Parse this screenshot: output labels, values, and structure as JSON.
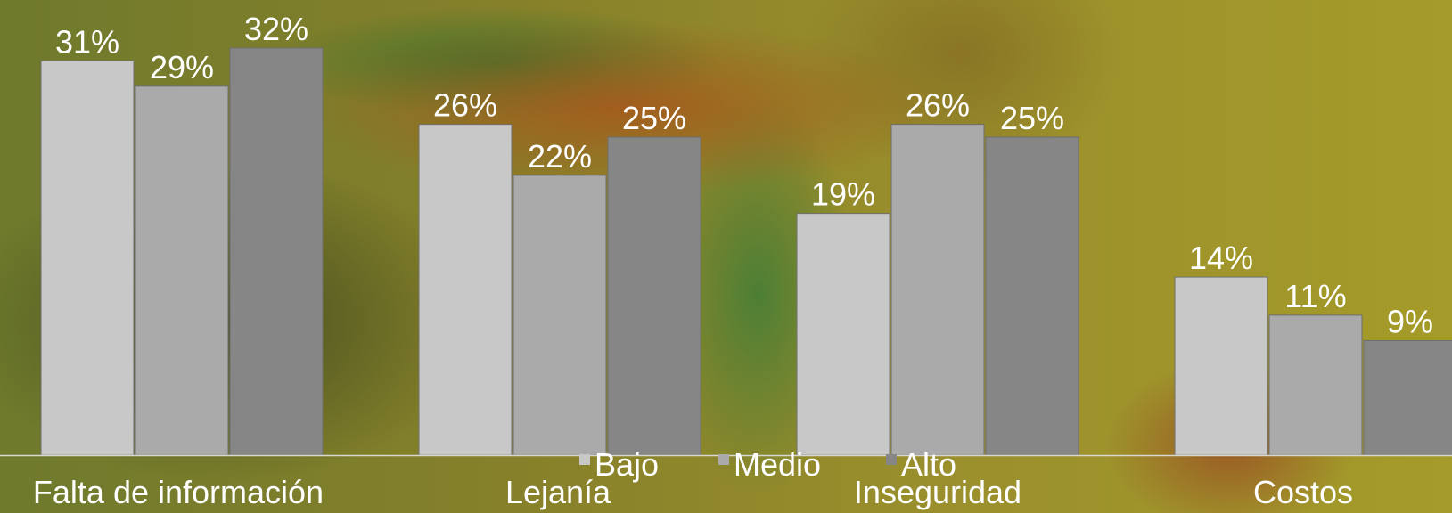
{
  "chart_data": {
    "type": "bar",
    "categories": [
      "Falta de información",
      "Lejanía",
      "Inseguridad",
      "Costos"
    ],
    "series": [
      {
        "name": "Bajo",
        "values": [
          31,
          26,
          19,
          14
        ],
        "color": "#c8c8c8"
      },
      {
        "name": "Medio",
        "values": [
          29,
          22,
          26,
          11
        ],
        "color": "#aaaaaa"
      },
      {
        "name": "Alto",
        "values": [
          32,
          25,
          25,
          9
        ],
        "color": "#868686"
      }
    ],
    "value_labels": [
      [
        "31%",
        "26%",
        "19%",
        "14%"
      ],
      [
        "29%",
        "22%",
        "26%",
        "11%"
      ],
      [
        "32%",
        "25%",
        "25%",
        "9%"
      ]
    ],
    "ylim": [
      0,
      32
    ],
    "legend_position": "bottom-center",
    "grid": false
  }
}
